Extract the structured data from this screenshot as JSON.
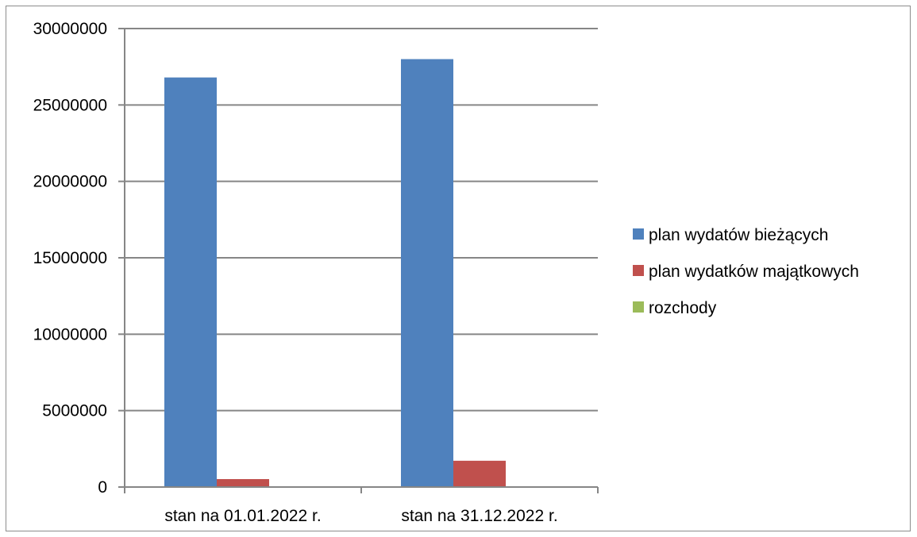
{
  "chart_data": {
    "type": "bar",
    "title": "",
    "xlabel": "",
    "ylabel": "",
    "categories": [
      "stan na 01.01.2022 r.",
      "stan na 31.12.2022 r."
    ],
    "series": [
      {
        "name": "plan wydatów bieżących",
        "color": "#4f81bd",
        "values": [
          26800000,
          28000000
        ]
      },
      {
        "name": "plan wydatków majątkowych",
        "color": "#c0504d",
        "values": [
          520000,
          1720000
        ]
      },
      {
        "name": "rozchody",
        "color": "#9bbb59",
        "values": [
          0,
          0
        ]
      }
    ],
    "ylim": [
      0,
      30000000
    ],
    "yticks": [
      0,
      5000000,
      10000000,
      15000000,
      20000000,
      25000000,
      30000000
    ],
    "grid": true,
    "legend_position": "right"
  }
}
